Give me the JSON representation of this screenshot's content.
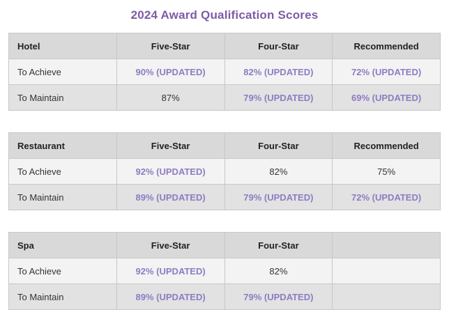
{
  "page": {
    "title": "2024 Award Qualification Scores"
  },
  "colors": {
    "title_purple": "#7d5ba6",
    "updated_purple": "#8e7cc3",
    "header_bg": "#d9d9d9",
    "achieve_row_bg": "#f3f3f3",
    "maintain_row_bg": "#e2e2e2"
  },
  "tables": [
    {
      "headers": [
        "Hotel",
        "Five-Star",
        "Four-Star",
        "Recommended"
      ],
      "rows": [
        {
          "label": "To Achieve",
          "cells": [
            {
              "text": "90% (UPDATED)",
              "updated": true
            },
            {
              "text": "82% (UPDATED)",
              "updated": true
            },
            {
              "text": "72% (UPDATED)",
              "updated": true
            }
          ]
        },
        {
          "label": "To Maintain",
          "cells": [
            {
              "text": "87%",
              "updated": false
            },
            {
              "text": "79% (UPDATED)",
              "updated": true
            },
            {
              "text": "69% (UPDATED)",
              "updated": true
            }
          ]
        }
      ]
    },
    {
      "headers": [
        "Restaurant",
        "Five-Star",
        "Four-Star",
        "Recommended"
      ],
      "rows": [
        {
          "label": "To Achieve",
          "cells": [
            {
              "text": "92% (UPDATED)",
              "updated": true
            },
            {
              "text": "82%",
              "updated": false
            },
            {
              "text": "75%",
              "updated": false
            }
          ]
        },
        {
          "label": "To Maintain",
          "cells": [
            {
              "text": "89% (UPDATED)",
              "updated": true
            },
            {
              "text": "79% (UPDATED)",
              "updated": true
            },
            {
              "text": "72% (UPDATED)",
              "updated": true
            }
          ]
        }
      ]
    },
    {
      "headers": [
        "Spa",
        "Five-Star",
        "Four-Star",
        ""
      ],
      "rows": [
        {
          "label": "To Achieve",
          "cells": [
            {
              "text": "92% (UPDATED)",
              "updated": true
            },
            {
              "text": "82%",
              "updated": false
            },
            {
              "text": "",
              "updated": false
            }
          ]
        },
        {
          "label": "To Maintain",
          "cells": [
            {
              "text": "89% (UPDATED)",
              "updated": true
            },
            {
              "text": "79% (UPDATED)",
              "updated": true
            },
            {
              "text": "",
              "updated": false
            }
          ]
        }
      ]
    }
  ]
}
